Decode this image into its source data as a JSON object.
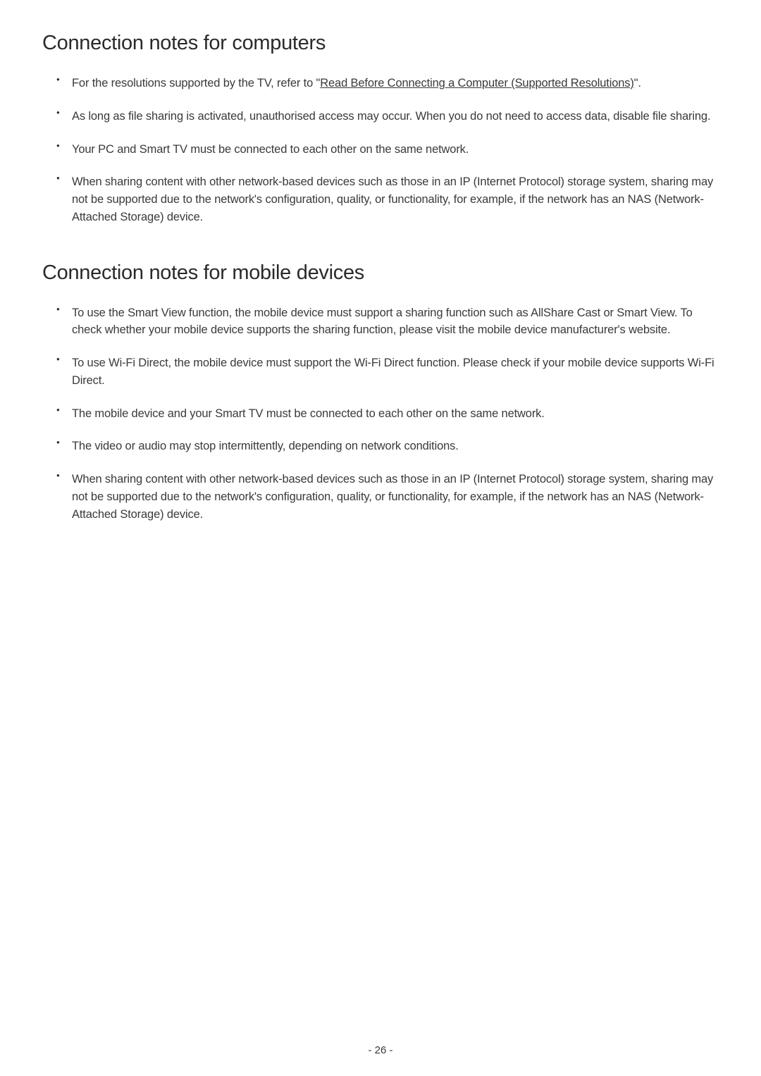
{
  "sections": {
    "computers": {
      "heading": "Connection notes for computers",
      "items": {
        "item0_prefix": "For the resolutions supported by the TV, refer to \"",
        "item0_link": "Read Before Connecting a Computer (Supported Resolutions)",
        "item0_suffix": "\".",
        "item1": "As long as file sharing is activated, unauthorised access may occur. When you do not need to access data, disable file sharing.",
        "item2": "Your PC and Smart TV must be connected to each other on the same network.",
        "item3": "When sharing content with other network-based devices such as those in an IP (Internet Protocol) storage system, sharing may not be supported due to the network's configuration, quality, or functionality, for example, if the network has an NAS (Network-Attached Storage) device."
      }
    },
    "mobile": {
      "heading": "Connection notes for mobile devices",
      "items": {
        "item0": "To use the Smart View function, the mobile device must support a sharing function such as AllShare Cast or Smart View. To check whether your mobile device supports the sharing function, please visit the mobile device manufacturer's website.",
        "item1": "To use Wi-Fi Direct, the mobile device must support the Wi-Fi Direct function. Please check if your mobile device supports Wi-Fi Direct.",
        "item2": "The mobile device and your Smart TV must be connected to each other on the same network.",
        "item3": "The video or audio may stop intermittently, depending on network conditions.",
        "item4": "When sharing content with other network-based devices such as those in an IP (Internet Protocol) storage system, sharing may not be supported due to the network's configuration, quality, or functionality, for example, if the network has an NAS (Network-Attached Storage) device."
      }
    }
  },
  "page_number": "- 26 -"
}
